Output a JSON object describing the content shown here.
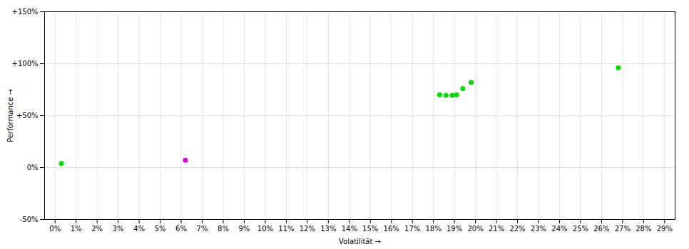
{
  "chart_data": {
    "type": "scatter",
    "xlabel": "Volatilität",
    "ylabel": "Performance",
    "xlim": [
      -0.005,
      0.295
    ],
    "ylim": [
      -0.5,
      1.5
    ],
    "xticks": [
      {
        "value": 0.0,
        "label": "0%"
      },
      {
        "value": 0.01,
        "label": "1%"
      },
      {
        "value": 0.02,
        "label": "2%"
      },
      {
        "value": 0.03,
        "label": "3%"
      },
      {
        "value": 0.04,
        "label": "4%"
      },
      {
        "value": 0.05,
        "label": "5%"
      },
      {
        "value": 0.06,
        "label": "6%"
      },
      {
        "value": 0.07,
        "label": "7%"
      },
      {
        "value": 0.08,
        "label": "8%"
      },
      {
        "value": 0.09,
        "label": "9%"
      },
      {
        "value": 0.1,
        "label": "10%"
      },
      {
        "value": 0.11,
        "label": "11%"
      },
      {
        "value": 0.12,
        "label": "12%"
      },
      {
        "value": 0.13,
        "label": "13%"
      },
      {
        "value": 0.14,
        "label": "14%"
      },
      {
        "value": 0.15,
        "label": "15%"
      },
      {
        "value": 0.16,
        "label": "16%"
      },
      {
        "value": 0.17,
        "label": "17%"
      },
      {
        "value": 0.18,
        "label": "18%"
      },
      {
        "value": 0.19,
        "label": "19%"
      },
      {
        "value": 0.2,
        "label": "20%"
      },
      {
        "value": 0.21,
        "label": "21%"
      },
      {
        "value": 0.22,
        "label": "22%"
      },
      {
        "value": 0.23,
        "label": "23%"
      },
      {
        "value": 0.24,
        "label": "24%"
      },
      {
        "value": 0.25,
        "label": "25%"
      },
      {
        "value": 0.26,
        "label": "26%"
      },
      {
        "value": 0.27,
        "label": "27%"
      },
      {
        "value": 0.28,
        "label": "28%"
      },
      {
        "value": 0.29,
        "label": "29%"
      }
    ],
    "yticks": [
      {
        "value": -0.5,
        "label": "-50%"
      },
      {
        "value": 0.0,
        "label": "0%"
      },
      {
        "value": 0.5,
        "label": "+50%"
      },
      {
        "value": 1.0,
        "label": "+100%"
      },
      {
        "value": 1.5,
        "label": "+150%"
      }
    ],
    "grid": true,
    "series": [
      {
        "color": "#00dd00",
        "x": [
          0.003,
          0.183,
          0.186,
          0.189,
          0.191,
          0.194,
          0.198,
          0.268
        ],
        "values": [
          0.04,
          0.7,
          0.695,
          0.695,
          0.7,
          0.76,
          0.82,
          0.96
        ]
      },
      {
        "color": "#dd00dd",
        "x": [
          0.062
        ],
        "values": [
          0.07
        ]
      }
    ]
  }
}
